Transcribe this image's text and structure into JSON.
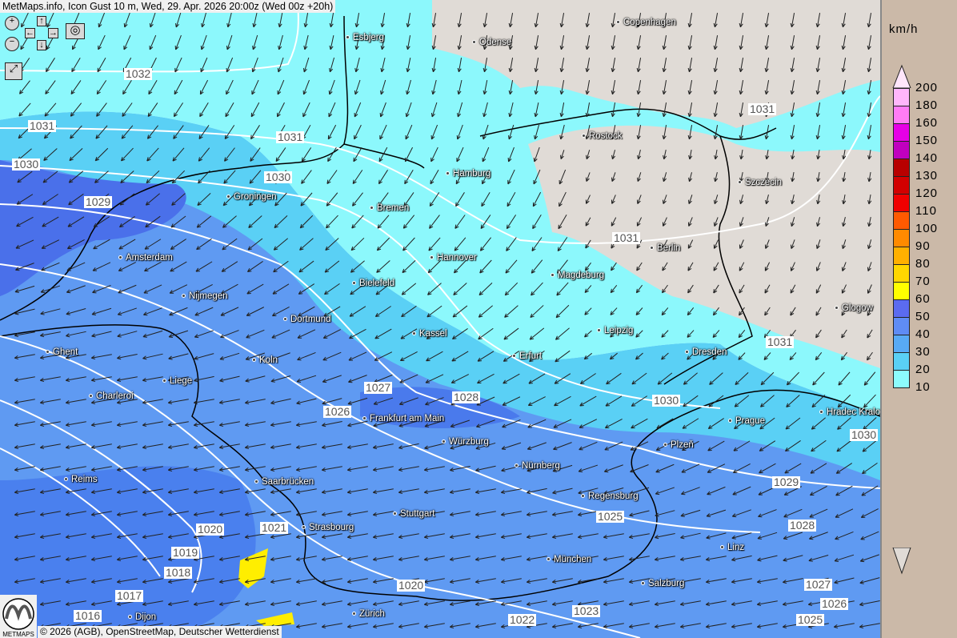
{
  "title": "MetMaps.info, Icon Gust 10 m, Wed, 29. Apr. 2026 20:00z (Wed 00z +20h)",
  "controls": {
    "zoom_in": "zoom-in-icon",
    "zoom_out": "zoom-out-icon",
    "pan_up": "↑",
    "pan_down": "↓",
    "pan_left": "←",
    "pan_right": "→",
    "snapshot": "camera-icon",
    "fullscreen": "fullscreen-icon"
  },
  "cities": [
    "Esbjerg",
    "Odense",
    "Copenhagen",
    "Rostock",
    "Szczecin",
    "Hamburg",
    "Groningen",
    "Bremen",
    "Berlin",
    "Amsterdam",
    "Hannover",
    "Magdeburg",
    "Bielefeld",
    "Nijmegen",
    "Glogow",
    "Dortmund",
    "Kassel",
    "Leipzig",
    "Ghent",
    "Erfurt",
    "Dresden",
    "Koln",
    "Liege",
    "Charleroi",
    "Hradec Kralove",
    "Prague",
    "Frankfurt am Main",
    "Würzburg",
    "Plzeň",
    "Nürnberg",
    "Reims",
    "Saarbrücken",
    "Regensburg",
    "Stuttgart",
    "Strasbourg",
    "Linz",
    "München",
    "Salzburg",
    "Zürich",
    "Dijon"
  ],
  "isobars": [
    "1032",
    "1031",
    "1031",
    "1030",
    "1030",
    "1029",
    "1031",
    "1031",
    "1031",
    "1027",
    "1028",
    "1026",
    "1030",
    "1030",
    "1029",
    "1025",
    "1028",
    "1020",
    "1021",
    "1019",
    "1018",
    "1017",
    "1020",
    "1022",
    "1023",
    "1027",
    "1026",
    "1025",
    "1016"
  ],
  "legend": {
    "unit": "km/h",
    "labels": [
      "200",
      "180",
      "160",
      "150",
      "140",
      "130",
      "120",
      "110",
      "100",
      "90",
      "80",
      "70",
      "60",
      "50",
      "40",
      "30",
      "20",
      "10"
    ],
    "colors": [
      "#ffb6fb",
      "#ff7cf5",
      "#e600e6",
      "#c000bf",
      "#b80000",
      "#d20000",
      "#f00000",
      "#ff5a00",
      "#ff8a00",
      "#ffb000",
      "#ffd700",
      "#ffff00",
      "#5b6bf0",
      "#5f8cf5",
      "#58aaf5",
      "#5ad0f5",
      "#8cfcfc"
    ],
    "top_arrow": "#ffe6fb",
    "bottom_arrow": "#e0dbd6"
  },
  "copyright": "© 2026 (AGB), OpenStreetMap, Deutscher Wetterdienst",
  "logo_text": "METMAPS"
}
